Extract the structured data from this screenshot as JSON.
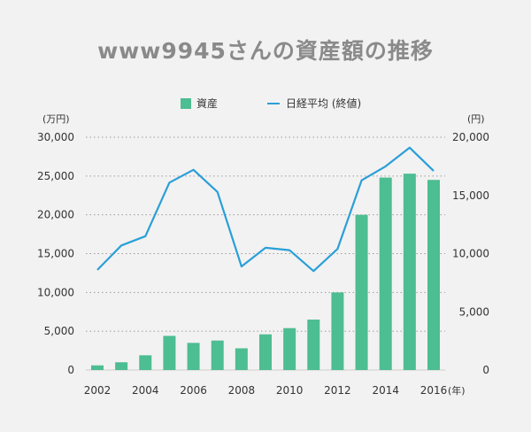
{
  "chart_data": {
    "type": "bar+line",
    "title": "www9945さんの資産額の推移",
    "x": [
      2002,
      2003,
      2004,
      2005,
      2006,
      2007,
      2008,
      2009,
      2010,
      2011,
      2012,
      2013,
      2014,
      2015,
      2016
    ],
    "xticks": [
      "2002",
      "2004",
      "2006",
      "2008",
      "2010",
      "2012",
      "2014",
      "2016"
    ],
    "x_unit": "(年)",
    "series": [
      {
        "name": "資産",
        "kind": "bar",
        "axis": "left",
        "color": "#4dbd92",
        "values": [
          600,
          1000,
          1900,
          4400,
          3500,
          3800,
          2800,
          4600,
          5400,
          6500,
          10000,
          20000,
          24800,
          25300,
          24500
        ]
      },
      {
        "name": "日経平均 (終値)",
        "kind": "line",
        "axis": "right",
        "color": "#2a9fd8",
        "values": [
          8600,
          10700,
          11500,
          16100,
          17200,
          15300,
          8900,
          10500,
          10300,
          8500,
          10400,
          16300,
          17500,
          19100,
          17100
        ]
      }
    ],
    "left_axis": {
      "unit": "(万円)",
      "ylim": [
        0,
        30000
      ],
      "ticks": [
        "0",
        "5,000",
        "10,000",
        "15,000",
        "20,000",
        "25,000",
        "30,000"
      ]
    },
    "right_axis": {
      "unit": "(円)",
      "ylim": [
        0,
        20000
      ],
      "ticks": [
        "0",
        "5,000",
        "10,000",
        "15,000",
        "20,000"
      ]
    },
    "grid": true,
    "legend_position": "top-center"
  }
}
